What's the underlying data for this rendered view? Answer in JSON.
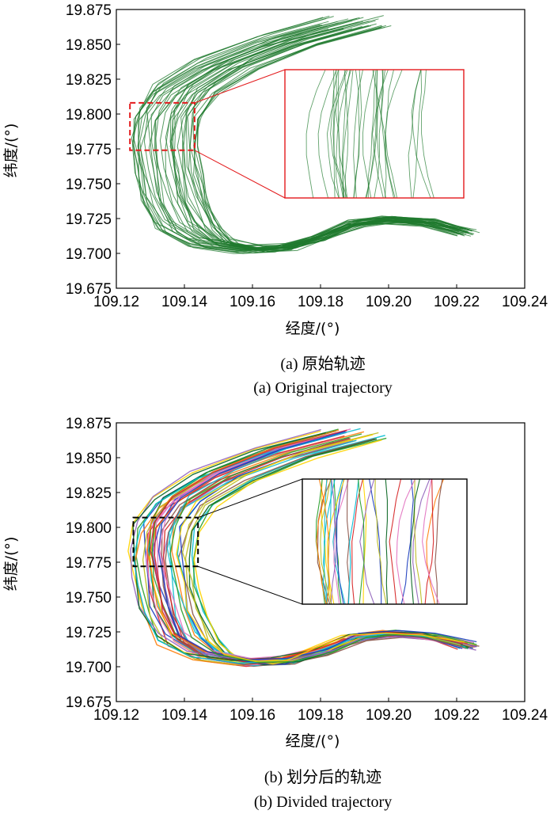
{
  "chart_data": [
    {
      "type": "line",
      "panel_id": "a",
      "xlabel": "经度/(°)",
      "ylabel": "纬度/(°)",
      "xlim": [
        109.12,
        109.24
      ],
      "ylim": [
        19.675,
        19.875
      ],
      "xticks": [
        "109.12",
        "109.14",
        "109.16",
        "109.18",
        "109.20",
        "109.22",
        "109.24"
      ],
      "yticks": [
        "19.675",
        "19.700",
        "19.725",
        "19.750",
        "19.775",
        "19.800",
        "19.825",
        "19.850",
        "19.875"
      ],
      "caption_cn": "(a) 原始轨迹",
      "caption_en": "(a) Original trajectory",
      "grid": false,
      "zoom_box": {
        "x": [
          109.124,
          109.143
        ],
        "y": [
          19.774,
          19.808
        ]
      },
      "mean_path": [
        [
          109.19,
          19.866
        ],
        [
          109.17,
          19.853
        ],
        [
          109.152,
          19.836
        ],
        [
          109.14,
          19.818
        ],
        [
          109.135,
          19.8
        ],
        [
          109.134,
          19.78
        ],
        [
          109.135,
          19.76
        ],
        [
          109.137,
          19.74
        ],
        [
          109.141,
          19.72
        ],
        [
          109.148,
          19.708
        ],
        [
          109.16,
          19.703
        ],
        [
          109.17,
          19.704
        ],
        [
          109.18,
          19.711
        ],
        [
          109.19,
          19.721
        ],
        [
          109.2,
          19.724
        ],
        [
          109.212,
          19.722
        ],
        [
          109.223,
          19.715
        ]
      ],
      "trajectory_count": 40
    },
    {
      "type": "line",
      "panel_id": "b",
      "xlabel": "经度/(°)",
      "ylabel": "纬度/(°)",
      "xlim": [
        109.12,
        109.24
      ],
      "ylim": [
        19.675,
        19.875
      ],
      "xticks": [
        "109.12",
        "109.14",
        "109.16",
        "109.18",
        "109.20",
        "109.22",
        "109.24"
      ],
      "yticks": [
        "19.675",
        "19.700",
        "19.725",
        "19.750",
        "19.775",
        "19.800",
        "19.825",
        "19.850",
        "19.875"
      ],
      "caption_cn": "(b) 划分后的轨迹",
      "caption_en": "(b) Divided trajectory",
      "grid": false,
      "zoom_box": {
        "x": [
          109.125,
          109.144
        ],
        "y": [
          19.772,
          19.807
        ]
      },
      "mean_path": [
        [
          109.19,
          19.866
        ],
        [
          109.17,
          19.853
        ],
        [
          109.152,
          19.836
        ],
        [
          109.14,
          19.818
        ],
        [
          109.135,
          19.8
        ],
        [
          109.134,
          19.78
        ],
        [
          109.135,
          19.76
        ],
        [
          109.137,
          19.74
        ],
        [
          109.141,
          19.72
        ],
        [
          109.148,
          19.708
        ],
        [
          109.16,
          19.703
        ],
        [
          109.17,
          19.704
        ],
        [
          109.18,
          19.711
        ],
        [
          109.19,
          19.721
        ],
        [
          109.2,
          19.724
        ],
        [
          109.212,
          19.722
        ],
        [
          109.223,
          19.715
        ]
      ],
      "trajectory_count": 40
    }
  ],
  "colors": {
    "panel_a_lines": "#1f7a2e",
    "panel_a_zoom": "#e31a1c",
    "panel_b_zoom": "#000000",
    "panel_b_palette": [
      "#d62728",
      "#1f3fbf",
      "#2ca02c",
      "#ffd400",
      "#17becf",
      "#ff7f0e",
      "#9467bd",
      "#8c564b",
      "#bcbd22",
      "#e377c2",
      "#0b6623",
      "#00bcd4"
    ]
  }
}
